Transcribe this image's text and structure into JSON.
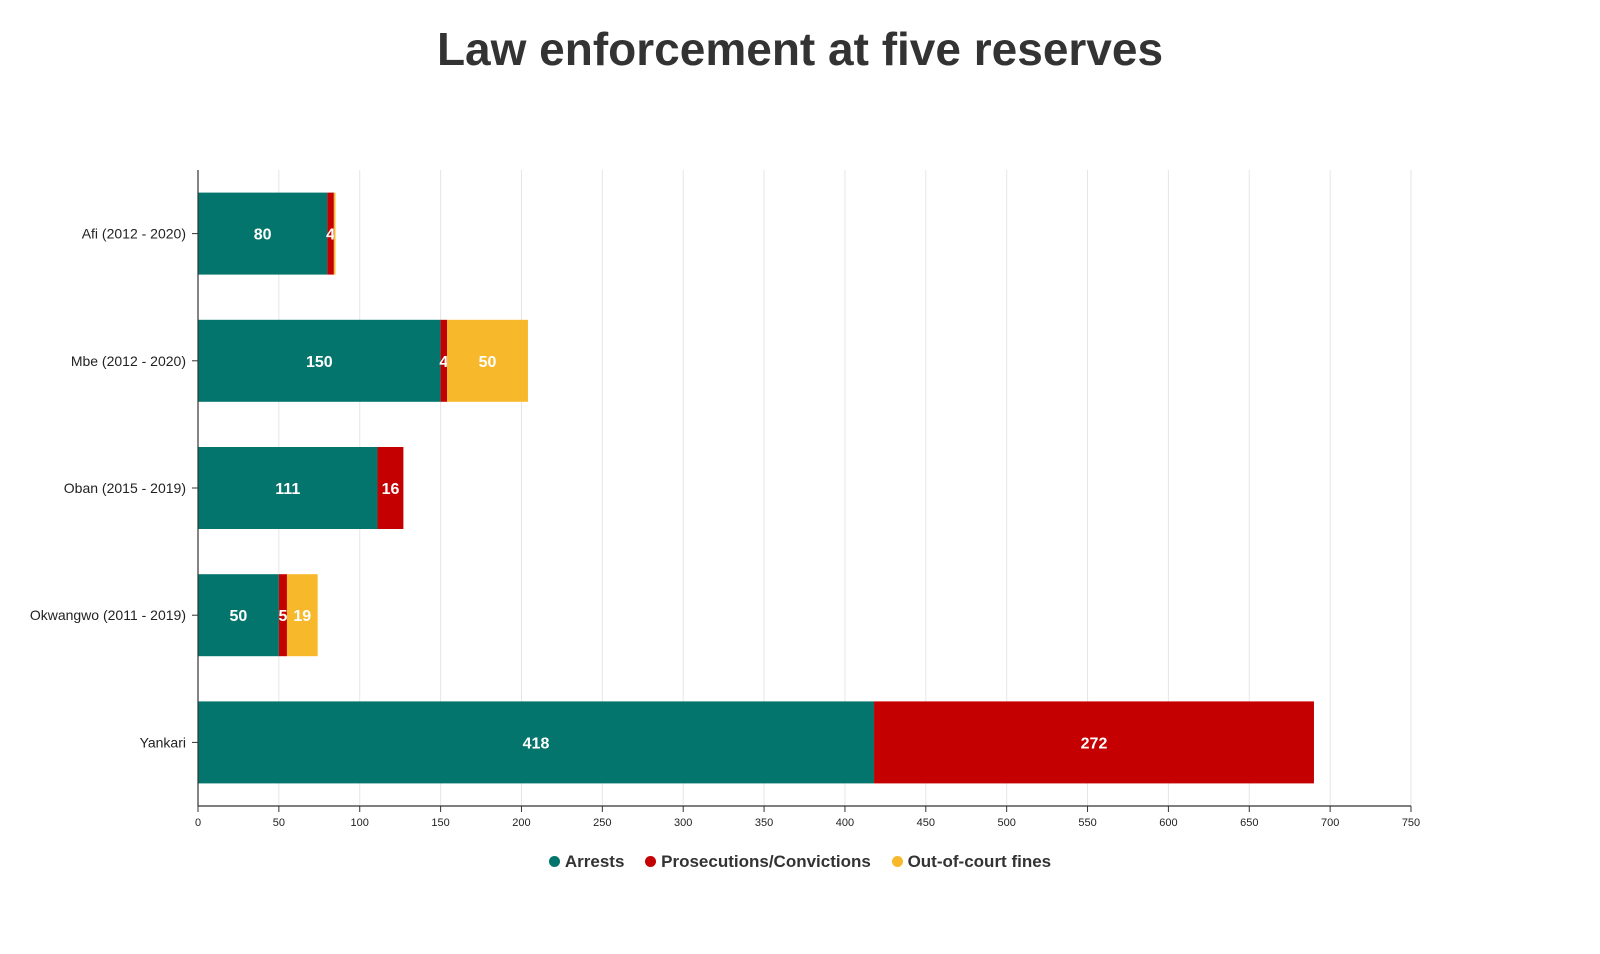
{
  "chart_data": {
    "type": "bar",
    "orientation": "horizontal",
    "stacked": true,
    "title": "Law enforcement at five reserves",
    "categories": [
      "Afi (2012 - 2020)",
      "Mbe (2012 - 2020)",
      "Oban (2015 - 2019)",
      "Okwangwo (2011 - 2019)",
      "Yankari"
    ],
    "series": [
      {
        "name": "Arrests",
        "color": "#04756c",
        "values": [
          80,
          150,
          111,
          50,
          418
        ],
        "labels": [
          "80",
          "150",
          "111",
          "50",
          "418"
        ]
      },
      {
        "name": "Prosecutions/Convictions",
        "color": "#c40000",
        "values": [
          4,
          4,
          16,
          5,
          272
        ],
        "labels": [
          "4",
          "4",
          "16",
          "5",
          "272"
        ]
      },
      {
        "name": "Out-of-court fines",
        "color": "#f7b92b",
        "values": [
          1,
          50,
          0,
          19,
          0
        ],
        "labels": [
          "",
          "50",
          "",
          "19",
          ""
        ]
      }
    ],
    "xlim": [
      0,
      750
    ],
    "xticks": [
      "0",
      "50",
      "100",
      "150",
      "200",
      "250",
      "300",
      "350",
      "400",
      "450",
      "500",
      "550",
      "600",
      "650",
      "700",
      "750"
    ],
    "grid": true,
    "legend_position": "bottom"
  }
}
